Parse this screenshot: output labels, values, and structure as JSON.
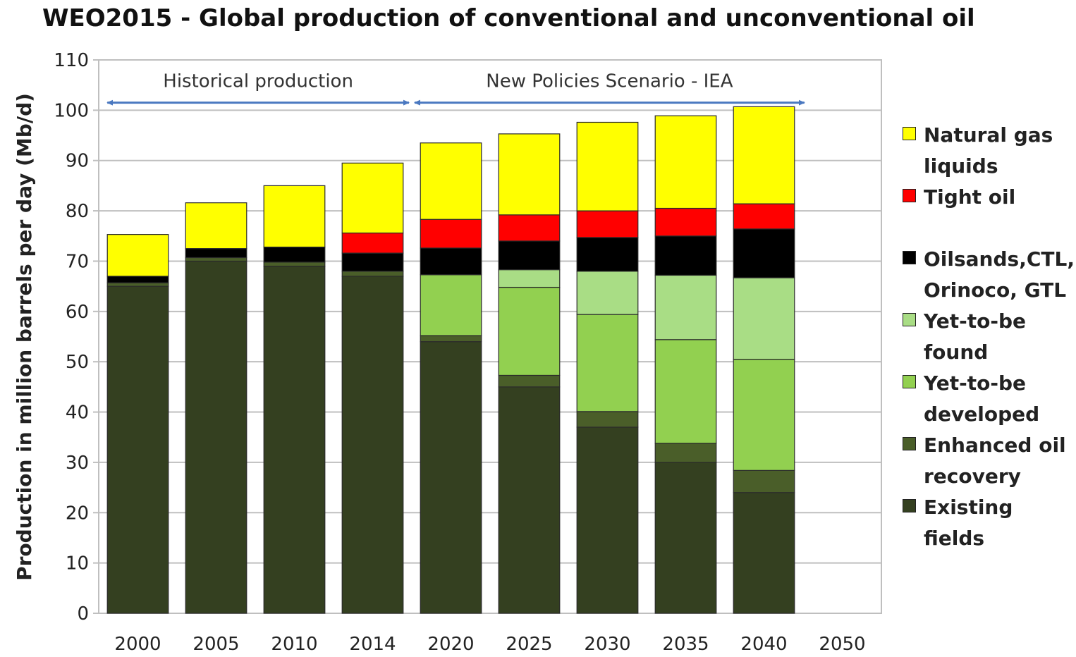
{
  "chart_data": {
    "type": "bar",
    "stacked": true,
    "title": "WEO2015 - Global production of conventional and unconventional oil",
    "xlabel": "",
    "ylabel": "Production in million barrels per day (Mb/d)",
    "ylim": [
      0,
      110
    ],
    "yticks": [
      0,
      10,
      20,
      30,
      40,
      50,
      60,
      70,
      80,
      90,
      100,
      110
    ],
    "grid": true,
    "legend_position": "right",
    "categories": [
      "2000",
      "2005",
      "2010",
      "2014",
      "2020",
      "2025",
      "2030",
      "2035",
      "2040",
      "2050"
    ],
    "series": [
      {
        "name": "Existing fields",
        "color": "#344020",
        "values": [
          65,
          70,
          69,
          67,
          54,
          45,
          37,
          30,
          24,
          null
        ]
      },
      {
        "name": "Enhanced oil recovery",
        "color": "#4a5e29",
        "values": [
          0.7,
          0.7,
          0.8,
          1.0,
          1.2,
          2.3,
          3.1,
          3.8,
          4.4,
          null
        ]
      },
      {
        "name": "Yet-to-be developed",
        "color": "#92d050",
        "values": [
          0,
          0,
          0,
          0,
          12.1,
          17.5,
          19.3,
          20.6,
          22.1,
          null
        ]
      },
      {
        "name": "Yet-to-be found",
        "color": "#a9dd85",
        "values": [
          0,
          0,
          0,
          0,
          0,
          3.5,
          8.6,
          12.8,
          16.2,
          null
        ]
      },
      {
        "name": "Oilsands,CTL, Orinoco, GTL",
        "color": "#000000",
        "values": [
          1.3,
          1.8,
          3.0,
          3.6,
          5.3,
          5.7,
          6.7,
          7.8,
          9.7,
          null
        ]
      },
      {
        "name": "Tight oil",
        "color": "#ff0000",
        "values": [
          0,
          0,
          0,
          4.0,
          5.7,
          5.2,
          5.3,
          5.5,
          5.0,
          null
        ]
      },
      {
        "name": "Natural gas liquids",
        "color": "#ffff00",
        "values": [
          8.3,
          9.1,
          12.2,
          13.9,
          15.2,
          16.1,
          17.6,
          18.4,
          19.3,
          null
        ]
      }
    ],
    "legend_order": [
      "Natural gas liquids",
      "Tight oil",
      "Oilsands,CTL, Orinoco, GTL",
      "Yet-to-be found",
      "Yet-to-be developed",
      "Enhanced oil recovery",
      "Existing fields"
    ],
    "annotations": [
      {
        "text": "Historical production",
        "from": "2000",
        "to": "2014"
      },
      {
        "text": "New Policies Scenario - IEA",
        "from": "2014",
        "to": "2040"
      }
    ],
    "arrow_color": "#4a78c0"
  }
}
